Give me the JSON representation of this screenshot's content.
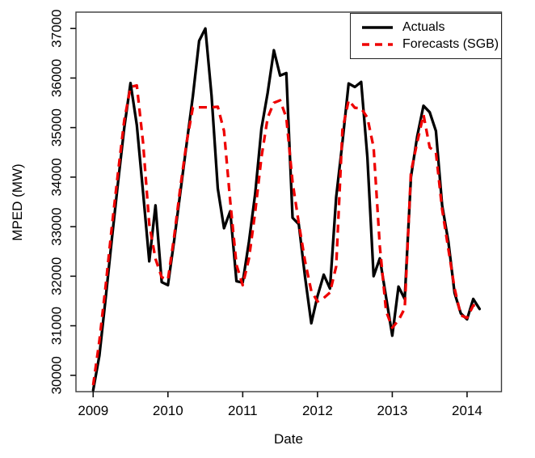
{
  "figure": {
    "background": "#ffffff"
  },
  "chart_data": {
    "type": "line",
    "title": "",
    "xlabel": "Date",
    "ylabel": "MPED (MW)",
    "x_start": "2009-01",
    "x_interval": "month",
    "xlim": [
      2008.77,
      2014.46
    ],
    "ylim": [
      29670,
      37330
    ],
    "xticks": [
      2009,
      2010,
      2011,
      2012,
      2013,
      2014
    ],
    "yticks": [
      30000,
      31000,
      32000,
      33000,
      34000,
      35000,
      36000,
      37000
    ],
    "grid": false,
    "legend": {
      "position": "top-right",
      "entries": [
        {
          "label": "Actuals",
          "color": "#000000",
          "style": "solid"
        },
        {
          "label": "Forecasts (SGB)",
          "color": "#ee0000",
          "style": "dashed"
        }
      ]
    },
    "series": [
      {
        "name": "Actuals",
        "color": "#000000",
        "style": "solid",
        "values": [
          29700,
          30400,
          31550,
          32750,
          33900,
          35000,
          35900,
          35050,
          33700,
          32300,
          33430,
          31880,
          31820,
          32720,
          33700,
          34670,
          35640,
          36750,
          37000,
          35640,
          33770,
          32970,
          33310,
          31900,
          31870,
          32700,
          33670,
          34980,
          35700,
          36560,
          36050,
          36100,
          33180,
          33050,
          31980,
          31050,
          31600,
          32030,
          31750,
          33600,
          34700,
          35890,
          35820,
          35920,
          34400,
          32000,
          32360,
          31580,
          30800,
          31790,
          31540,
          34000,
          34820,
          35440,
          35310,
          34930,
          33430,
          32700,
          31660,
          31250,
          31130,
          31540,
          31340
        ]
      },
      {
        "name": "Forecasts (SGB)",
        "color": "#ee0000",
        "style": "dashed",
        "values": [
          29800,
          30700,
          31800,
          33000,
          34100,
          35150,
          35820,
          35850,
          34700,
          33050,
          32350,
          31980,
          31930,
          32800,
          33800,
          34700,
          35410,
          35410,
          35410,
          35410,
          35420,
          34930,
          33510,
          32230,
          31820,
          32360,
          33300,
          34400,
          35200,
          35500,
          35550,
          35200,
          33900,
          33070,
          32300,
          31700,
          31490,
          31560,
          31670,
          32200,
          34950,
          35550,
          35400,
          35390,
          35200,
          34600,
          32600,
          31300,
          30960,
          31110,
          31350,
          34100,
          34700,
          35260,
          34600,
          34500,
          33350,
          32550,
          31750,
          31210,
          31160,
          31410,
          31430
        ]
      }
    ]
  }
}
